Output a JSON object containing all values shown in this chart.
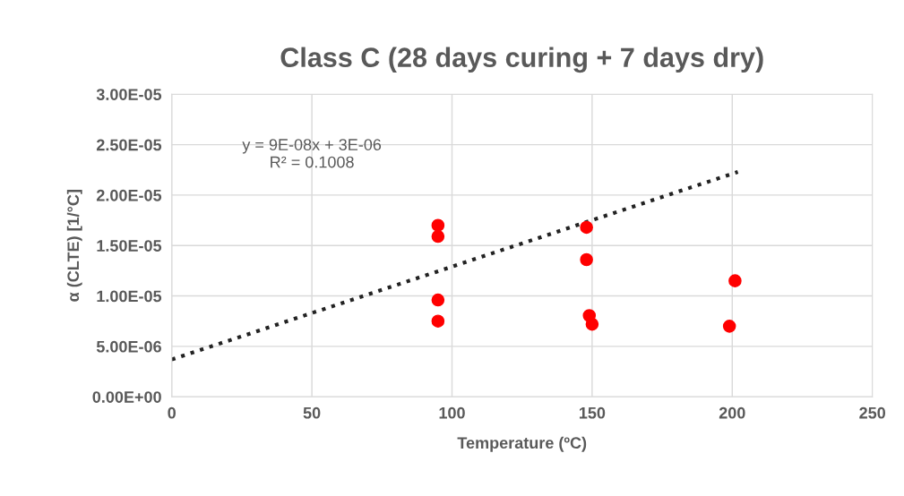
{
  "chart_data": {
    "type": "scatter",
    "title": "Class C (28 days curing + 7 days dry)",
    "xlabel": "Temperature (ºC)",
    "ylabel": "α (CLTE) [1/°C]",
    "series": [
      {
        "color": "#ff0000",
        "marker": "circle",
        "x": [
          95,
          95,
          95,
          95,
          148,
          148,
          149,
          150,
          199,
          201
        ],
        "values": [
          1.7e-05,
          1.59e-05,
          9.6e-06,
          7.5e-06,
          1.68e-05,
          1.36e-05,
          8.05e-06,
          7.2e-06,
          7e-06,
          1.15e-05
        ]
      },
      {
        "type": "line",
        "color": "#222222",
        "line_style": "dotted",
        "marker": "none",
        "x": [
          0,
          202
        ],
        "values": [
          3.7e-06,
          2.23e-05
        ]
      }
    ],
    "annotations": [
      "y = 9E-08x + 3E-06\nR² = 0.1008"
    ],
    "xlim": [
      0,
      250
    ],
    "xticks": [
      0,
      50,
      100,
      150,
      200,
      250
    ],
    "ylim": [
      0,
      3e-05
    ],
    "yticks": [
      {
        "value": 0,
        "label": "0.00E+00"
      },
      {
        "value": 5e-06,
        "label": "5.00E-06"
      },
      {
        "value": 1e-05,
        "label": "1.00E-05"
      },
      {
        "value": 1.5e-05,
        "label": "1.50E-05"
      },
      {
        "value": 2e-05,
        "label": "2.00E-05"
      },
      {
        "value": 2.5e-05,
        "label": "2.50E-05"
      },
      {
        "value": 3e-05,
        "label": "3.00E-05"
      }
    ],
    "grid": true,
    "legend": false
  }
}
